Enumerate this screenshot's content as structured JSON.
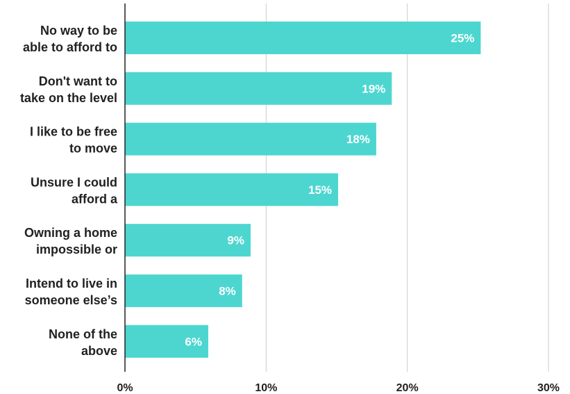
{
  "chart_data": {
    "type": "bar",
    "orientation": "horizontal",
    "categories": [
      [
        "No way to be",
        "able to afford to"
      ],
      [
        "Don't want to",
        "take on the level"
      ],
      [
        "I like to be free",
        "to move"
      ],
      [
        "Unsure I could",
        "afford a"
      ],
      [
        "Owning a home",
        "impossible or"
      ],
      [
        "Intend to live in",
        "someone else’s"
      ],
      [
        "None of the",
        "above"
      ]
    ],
    "values": [
      25.2,
      18.9,
      17.8,
      15.1,
      8.9,
      8.3,
      5.9
    ],
    "data_labels": [
      "25%",
      "19%",
      "18%",
      "15%",
      "9%",
      "8%",
      "6%"
    ],
    "xlim": [
      0,
      30
    ],
    "x_ticks": [
      {
        "value": 0,
        "label": "0%"
      },
      {
        "value": 10,
        "label": "10%"
      },
      {
        "value": 20,
        "label": "20%"
      },
      {
        "value": 30,
        "label": "30%"
      }
    ],
    "grid": true,
    "bar_color": "#4dd6d0",
    "grid_color": "#cccccc",
    "axis_color": "#212121"
  }
}
